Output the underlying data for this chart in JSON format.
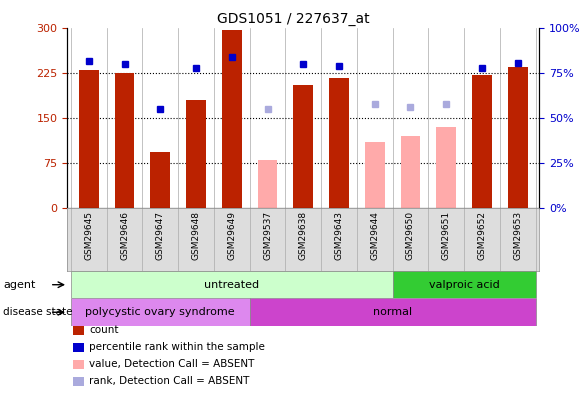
{
  "title": "GDS1051 / 227637_at",
  "samples": [
    "GSM29645",
    "GSM29646",
    "GSM29647",
    "GSM29648",
    "GSM29649",
    "GSM29537",
    "GSM29638",
    "GSM29643",
    "GSM29644",
    "GSM29650",
    "GSM29651",
    "GSM29652",
    "GSM29653"
  ],
  "count_values": [
    230,
    225,
    93,
    180,
    297,
    null,
    205,
    218,
    null,
    null,
    null,
    222,
    235
  ],
  "count_absent_values": [
    null,
    null,
    null,
    null,
    null,
    80,
    null,
    null,
    110,
    120,
    135,
    null,
    null
  ],
  "percentile_rank": [
    82,
    80,
    55,
    78,
    84,
    null,
    80,
    79,
    null,
    null,
    null,
    78,
    81
  ],
  "percentile_rank_absent": [
    null,
    null,
    null,
    null,
    null,
    55,
    null,
    null,
    58,
    56,
    58,
    null,
    null
  ],
  "count_color": "#bb2200",
  "count_absent_color": "#ffaaaa",
  "rank_color": "#0000cc",
  "rank_absent_color": "#aaaadd",
  "ylim_left": [
    0,
    300
  ],
  "ylim_right": [
    0,
    100
  ],
  "yticks_left": [
    0,
    75,
    150,
    225,
    300
  ],
  "yticks_right": [
    0,
    25,
    50,
    75,
    100
  ],
  "ytick_labels_left": [
    "0",
    "75",
    "150",
    "225",
    "300"
  ],
  "ytick_labels_right": [
    "0%",
    "25%",
    "50%",
    "75%",
    "100%"
  ],
  "agent_groups": [
    {
      "label": "untreated",
      "start": 0,
      "end": 9,
      "color": "#ccffcc"
    },
    {
      "label": "valproic acid",
      "start": 9,
      "end": 13,
      "color": "#33cc33"
    }
  ],
  "disease_groups": [
    {
      "label": "polycystic ovary syndrome",
      "start": 0,
      "end": 5,
      "color": "#dd88ee"
    },
    {
      "label": "normal",
      "start": 5,
      "end": 13,
      "color": "#cc44cc"
    }
  ],
  "agent_label": "agent",
  "disease_label": "disease state",
  "legend_items": [
    {
      "color": "#bb2200",
      "label": "count"
    },
    {
      "color": "#0000cc",
      "label": "percentile rank within the sample"
    },
    {
      "color": "#ffaaaa",
      "label": "value, Detection Call = ABSENT"
    },
    {
      "color": "#aaaadd",
      "label": "rank, Detection Call = ABSENT"
    }
  ],
  "bar_width": 0.55,
  "background_color": "#ffffff"
}
